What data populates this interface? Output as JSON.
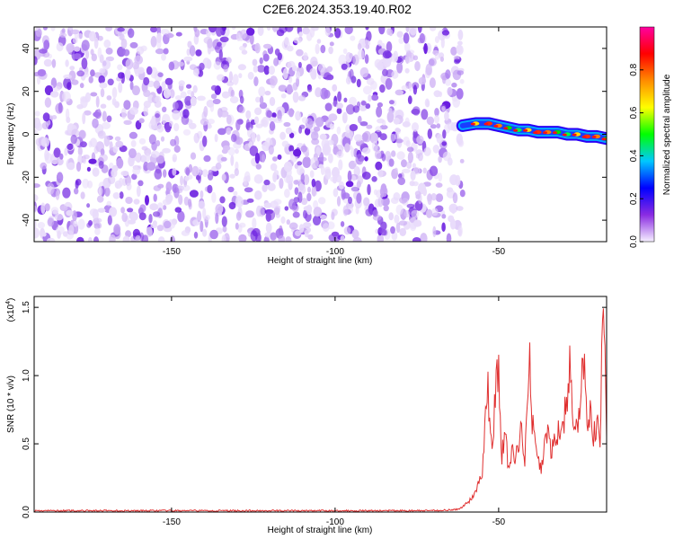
{
  "title": "C2E6.2024.353.19.40.R02",
  "chart_data": [
    {
      "type": "heatmap",
      "xlabel": "Height of straight line (km)",
      "ylabel": "Frequency (Hz)",
      "xlim": [
        -192,
        -17
      ],
      "ylim": [
        -50,
        50
      ],
      "xticks": [
        -150,
        -100,
        -50
      ],
      "yticks": [
        -40,
        -20,
        0,
        20,
        40
      ],
      "noise_region_x": [
        -192,
        -61
      ],
      "signal_ridge": {
        "x": [
          -61,
          -57,
          -53,
          -50,
          -47,
          -44,
          -41,
          -38,
          -35,
          -32,
          -29,
          -26,
          -23,
          -20,
          -17
        ],
        "y": [
          4,
          5,
          5,
          4,
          3,
          2,
          2,
          1,
          1,
          1,
          0,
          0,
          -1,
          -1,
          -2
        ],
        "peak_amplitude": 0.9
      },
      "colorbar": {
        "label": "Normalized spectral amplitude",
        "range": [
          0.0,
          1.0
        ],
        "ticks": [
          0.0,
          0.2,
          0.4,
          0.6,
          0.8
        ],
        "colors": [
          "#f6f0ff",
          "#8a2be2",
          "#0000ff",
          "#00c8ff",
          "#00ff00",
          "#ffff00",
          "#ff8c00",
          "#ff0000",
          "#ff00a0"
        ]
      }
    },
    {
      "type": "line",
      "xlabel": "Height of straight line (km)",
      "ylabel": "SNR (10 * v/v)",
      "y_multiplier": "(x10",
      "y_multiplier_exp": "4",
      "y_multiplier_close": ")",
      "xlim": [
        -192,
        -17
      ],
      "ylim": [
        0,
        1.58
      ],
      "xticks": [
        -150,
        -100,
        -50
      ],
      "yticks": [
        0.0,
        0.5,
        1.0,
        1.5
      ],
      "ytick_labels": [
        "0.0",
        "0.5",
        "1.0",
        "1.5"
      ],
      "color": "#e03030",
      "series": [
        {
          "x": [
            -192,
            -170,
            -150,
            -130,
            -110,
            -90,
            -70,
            -62,
            -59,
            -57,
            -55,
            -53.5,
            -52,
            -51,
            -50,
            -49,
            -48,
            -47,
            -46,
            -45,
            -44,
            -43,
            -42,
            -41,
            -40.5,
            -40,
            -39,
            -38,
            -37,
            -36,
            -35,
            -34,
            -33,
            -32,
            -31,
            -30,
            -29,
            -28,
            -27,
            -26,
            -25,
            -24,
            -23,
            -22,
            -21,
            -20,
            -19,
            -18,
            -17
          ],
          "y": [
            0.01,
            0.01,
            0.01,
            0.01,
            0.01,
            0.01,
            0.01,
            0.02,
            0.08,
            0.15,
            0.3,
            0.95,
            0.5,
            0.85,
            1.05,
            0.4,
            0.6,
            0.3,
            0.45,
            0.35,
            0.5,
            0.6,
            0.4,
            0.9,
            1.12,
            0.75,
            0.5,
            0.45,
            0.3,
            0.5,
            0.55,
            0.45,
            0.5,
            0.55,
            0.65,
            0.7,
            0.85,
            1.1,
            0.55,
            0.6,
            0.9,
            1.15,
            0.6,
            0.7,
            0.55,
            0.65,
            0.5,
            1.58,
            0.55
          ]
        }
      ]
    }
  ]
}
